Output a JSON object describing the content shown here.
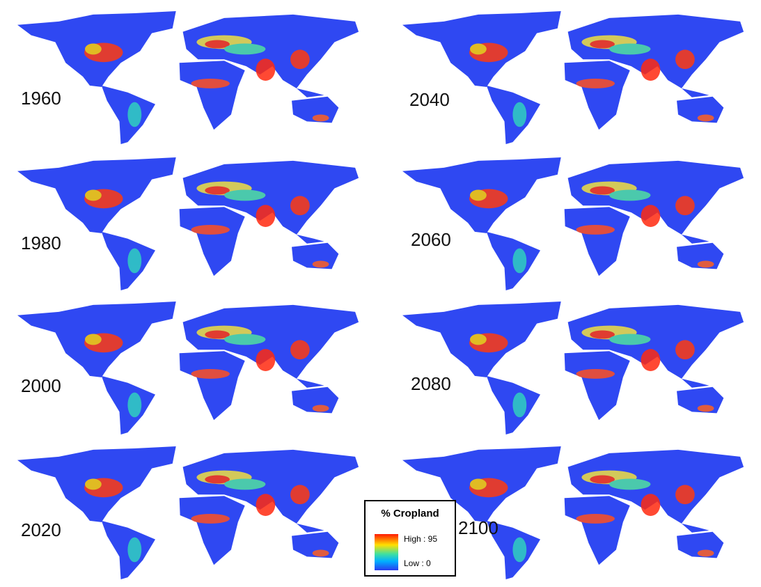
{
  "panels": [
    {
      "year": "1960"
    },
    {
      "year": "1980"
    },
    {
      "year": "2000"
    },
    {
      "year": "2020"
    },
    {
      "year": "2040"
    },
    {
      "year": "2060"
    },
    {
      "year": "2080"
    },
    {
      "year": "2100"
    }
  ],
  "legend": {
    "title": "% Cropland",
    "high": "High : 95",
    "low": "Low : 0"
  }
}
